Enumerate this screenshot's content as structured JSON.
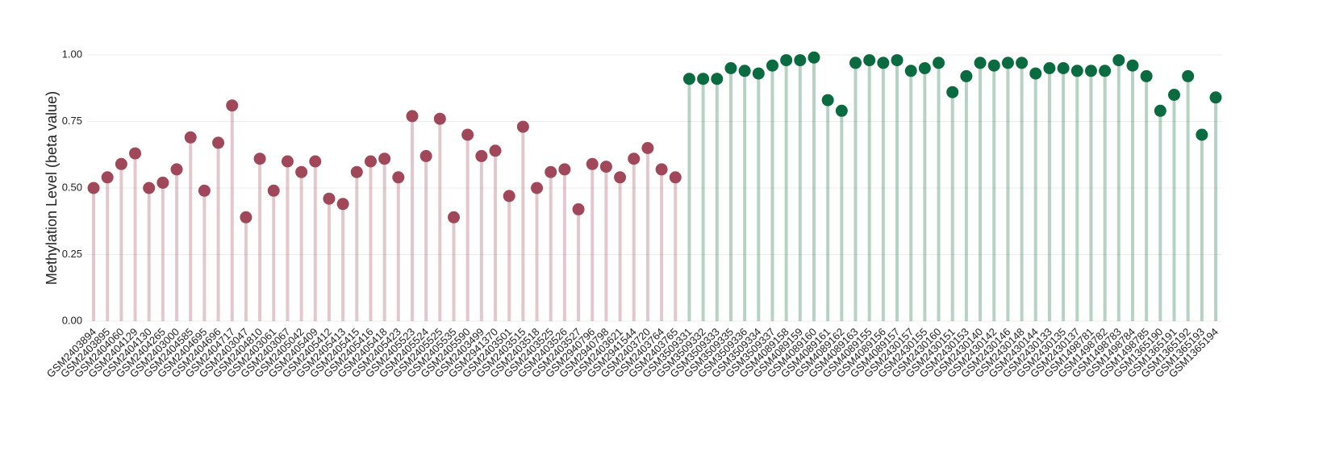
{
  "chart_data": {
    "type": "lollipop",
    "y_label": "Methylation Level (beta value)",
    "categories": [
      "GSM2403894",
      "GSM2403895",
      "GSM2404060",
      "GSM2404129",
      "GSM2404130",
      "GSM2404265",
      "GSM2403000",
      "GSM2404585",
      "GSM2404695",
      "GSM2404696",
      "GSM2404717",
      "GSM2403047",
      "GSM2404810",
      "GSM2403061",
      "GSM2403067",
      "GSM2405042",
      "GSM2405409",
      "GSM2405412",
      "GSM2405413",
      "GSM2405415",
      "GSM2405416",
      "GSM2405418",
      "GSM2405423",
      "GSM2405523",
      "GSM2405524",
      "GSM2405525",
      "GSM2405535",
      "GSM2405590",
      "GSM2403499",
      "GSM2941370",
      "GSM2403501",
      "GSM2403515",
      "GSM2403518",
      "GSM2403525",
      "GSM2403526",
      "GSM2403527",
      "GSM2940796",
      "GSM2940798",
      "GSM2403621",
      "GSM2941544",
      "GSM2403720",
      "GSM2403764",
      "GSM2403765",
      "GSM3509331",
      "GSM3509332",
      "GSM3509333",
      "GSM3509335",
      "GSM3509336",
      "GSM3509334",
      "GSM3509337",
      "GSM4089158",
      "GSM4089159",
      "GSM4089160",
      "GSM4089161",
      "GSM4089162",
      "GSM4089163",
      "GSM4089155",
      "GSM4089156",
      "GSM4089157",
      "GSM2430157",
      "GSM2430155",
      "GSM2430160",
      "GSM2430151",
      "GSM2430153",
      "GSM2430140",
      "GSM2430142",
      "GSM2430146",
      "GSM2430148",
      "GSM2430144",
      "GSM2430133",
      "GSM2430135",
      "GSM2430137",
      "GSM1498781",
      "GSM1498782",
      "GSM1498783",
      "GSM1498784",
      "GSM1498785",
      "GSM1365190",
      "GSM1365191",
      "GSM1365192",
      "GSM1365193",
      "GSM1365194"
    ],
    "series": [
      {
        "color": "#a0485a",
        "values": [
          0.5,
          0.54,
          0.59,
          0.63,
          0.5,
          0.52,
          0.57,
          0.69,
          0.49,
          0.67,
          0.81,
          0.39,
          0.61,
          0.49,
          0.6,
          0.56,
          0.6,
          0.46,
          0.44,
          0.56,
          0.6,
          0.61,
          0.54,
          0.77,
          0.62,
          0.76,
          0.39,
          0.7,
          0.62,
          0.64,
          0.47,
          0.73,
          0.5,
          0.56,
          0.57,
          0.42,
          0.59,
          0.58,
          0.54,
          0.61,
          0.65,
          0.57,
          0.54,
          null,
          null,
          null,
          null,
          null,
          null,
          null,
          null,
          null,
          null,
          null,
          null,
          null,
          null,
          null,
          null,
          null,
          null,
          null,
          null,
          null,
          null,
          null,
          null,
          null,
          null,
          null,
          null,
          null,
          null,
          null,
          null,
          null,
          null,
          null,
          null,
          null,
          null,
          null
        ]
      },
      {
        "color": "#0b6b40",
        "values": [
          null,
          null,
          null,
          null,
          null,
          null,
          null,
          null,
          null,
          null,
          null,
          null,
          null,
          null,
          null,
          null,
          null,
          null,
          null,
          null,
          null,
          null,
          null,
          null,
          null,
          null,
          null,
          null,
          null,
          null,
          null,
          null,
          null,
          null,
          null,
          null,
          null,
          null,
          null,
          null,
          null,
          null,
          null,
          0.91,
          0.91,
          0.91,
          0.95,
          0.94,
          0.93,
          0.96,
          0.98,
          0.98,
          0.99,
          0.83,
          0.79,
          0.97,
          0.98,
          0.97,
          0.98,
          0.94,
          0.95,
          0.97,
          0.86,
          0.92,
          0.97,
          0.96,
          0.97,
          0.97,
          0.93,
          0.95,
          0.95,
          0.94,
          0.94,
          0.94,
          0.98,
          0.96,
          0.92,
          0.79,
          0.85,
          0.92,
          0.7,
          0.84
        ]
      }
    ],
    "ylim": [
      0,
      1.0
    ],
    "yticks": [
      {
        "value": 0,
        "label": "0.00"
      },
      {
        "value": 0.25,
        "label": "0.25"
      },
      {
        "value": 0.5,
        "label": "0.50"
      },
      {
        "value": 0.75,
        "label": "0.75"
      },
      {
        "value": 1.0,
        "label": "1.00"
      }
    ],
    "grid": true
  }
}
